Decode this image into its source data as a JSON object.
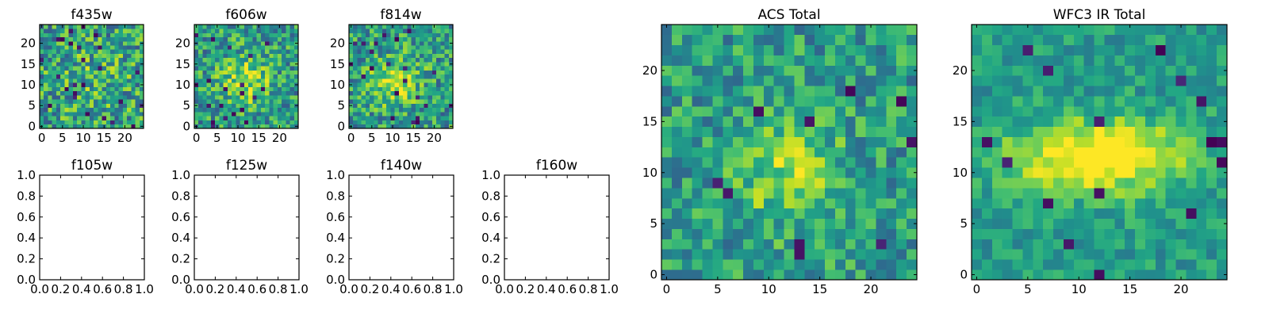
{
  "chart_data": [
    {
      "type": "heatmap",
      "title": "f435w",
      "grid_size": 25,
      "xlim": [
        0,
        24
      ],
      "ylim": [
        0,
        24
      ],
      "xticks": [
        "0",
        "5",
        "10",
        "15",
        "20"
      ],
      "yticks": [
        "0",
        "5",
        "10",
        "15",
        "20"
      ],
      "colormap": "viridis",
      "seed": 11,
      "blob": {
        "cx": 12,
        "cy": 11,
        "sigma": 7,
        "amp": 0.1
      },
      "noise": 0.62,
      "outliers": 0.03
    },
    {
      "type": "heatmap",
      "title": "f606w",
      "grid_size": 25,
      "xlim": [
        0,
        24
      ],
      "ylim": [
        0,
        24
      ],
      "xticks": [
        "0",
        "5",
        "10",
        "15",
        "20"
      ],
      "yticks": [
        "0",
        "5",
        "10",
        "15",
        "20"
      ],
      "colormap": "viridis",
      "seed": 23,
      "blob": {
        "cx": 12,
        "cy": 11,
        "sigma": 4,
        "amp": 0.32
      },
      "noise": 0.55,
      "outliers": 0.025
    },
    {
      "type": "heatmap",
      "title": "f814w",
      "grid_size": 25,
      "xlim": [
        0,
        24
      ],
      "ylim": [
        0,
        24
      ],
      "xticks": [
        "0",
        "5",
        "10",
        "15",
        "20"
      ],
      "yticks": [
        "0",
        "5",
        "10",
        "15",
        "20"
      ],
      "colormap": "viridis",
      "seed": 37,
      "blob": {
        "cx": 11,
        "cy": 11,
        "sigma": 4,
        "amp": 0.35
      },
      "noise": 0.55,
      "outliers": 0.025
    },
    {
      "type": "empty",
      "title": "f105w",
      "xlim": [
        0,
        1
      ],
      "ylim": [
        0,
        1
      ],
      "xticks": [
        "0.0",
        "0.2",
        "0.4",
        "0.6",
        "0.8",
        "1.0"
      ],
      "yticks": [
        "0.0",
        "0.2",
        "0.4",
        "0.6",
        "0.8",
        "1.0"
      ]
    },
    {
      "type": "empty",
      "title": "f125w",
      "xlim": [
        0,
        1
      ],
      "ylim": [
        0,
        1
      ],
      "xticks": [
        "0.0",
        "0.2",
        "0.4",
        "0.6",
        "0.8",
        "1.0"
      ],
      "yticks": [
        "0.0",
        "0.2",
        "0.4",
        "0.6",
        "0.8",
        "1.0"
      ]
    },
    {
      "type": "empty",
      "title": "f140w",
      "xlim": [
        0,
        1
      ],
      "ylim": [
        0,
        1
      ],
      "xticks": [
        "0.0",
        "0.2",
        "0.4",
        "0.6",
        "0.8",
        "1.0"
      ],
      "yticks": [
        "0.0",
        "0.2",
        "0.4",
        "0.6",
        "0.8",
        "1.0"
      ]
    },
    {
      "type": "empty",
      "title": "f160w",
      "xlim": [
        0,
        1
      ],
      "ylim": [
        0,
        1
      ],
      "xticks": [
        "0.0",
        "0.2",
        "0.4",
        "0.6",
        "0.8",
        "1.0"
      ],
      "yticks": [
        "0.0",
        "0.2",
        "0.4",
        "0.6",
        "0.8",
        "1.0"
      ]
    },
    {
      "type": "heatmap",
      "title": "ACS Total",
      "grid_size": 25,
      "xlim": [
        0,
        24
      ],
      "ylim": [
        0,
        24
      ],
      "xticks": [
        "0",
        "5",
        "10",
        "15",
        "20"
      ],
      "yticks": [
        "0",
        "5",
        "10",
        "15",
        "20"
      ],
      "colormap": "viridis",
      "seed": 53,
      "blob": {
        "cx": 12,
        "cy": 10,
        "sigma": 3.5,
        "amp": 0.3
      },
      "noise": 0.45,
      "outliers": 0.02
    },
    {
      "type": "heatmap",
      "title": "WFC3 IR Total",
      "grid_size": 25,
      "xlim": [
        0,
        24
      ],
      "ylim": [
        0,
        24
      ],
      "xticks": [
        "0",
        "5",
        "10",
        "15",
        "20"
      ],
      "yticks": [
        "0",
        "5",
        "10",
        "15",
        "20"
      ],
      "colormap": "viridis",
      "seed": 71,
      "blob": {
        "cx": 12,
        "cy": 11.5,
        "sigma": 3.2,
        "amp": 0.6,
        "sx": 1.9,
        "sy": 0.75
      },
      "noise": 0.3,
      "outliers": 0.015
    }
  ]
}
